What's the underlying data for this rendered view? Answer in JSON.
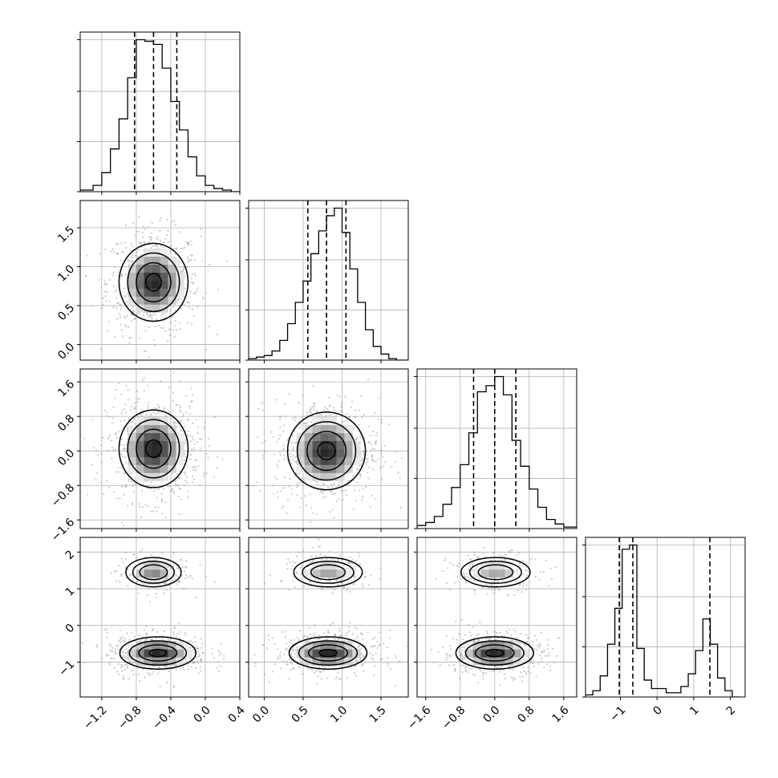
{
  "chart_data": {
    "type": "corner",
    "title": "",
    "params": [
      {
        "range": [
          -1.45,
          0.4
        ],
        "ticks": [
          -1.2,
          -0.8,
          -0.4,
          0.0,
          0.4
        ],
        "tick_labels": [
          "−1.2",
          "−0.8",
          "−0.4",
          "0.0",
          "0.4"
        ],
        "quantiles": [
          -0.82,
          -0.6,
          -0.33
        ]
      },
      {
        "range": [
          -0.2,
          1.85
        ],
        "ticks": [
          0.0,
          0.5,
          1.0,
          1.5
        ],
        "tick_labels": [
          "0.0",
          "0.5",
          "1.0",
          "1.5"
        ],
        "quantiles": [
          0.56,
          0.8,
          1.05
        ]
      },
      {
        "range": [
          -1.8,
          1.9
        ],
        "ticks": [
          -1.6,
          -0.8,
          0.0,
          0.8,
          1.6
        ],
        "tick_labels": [
          "−1.6",
          "−0.8",
          "0.0",
          "0.8",
          "1.6"
        ],
        "quantiles": [
          -0.49,
          0.0,
          0.49
        ]
      },
      {
        "range": [
          -1.95,
          2.4
        ],
        "ticks": [
          -1,
          0,
          1,
          2
        ],
        "tick_labels": [
          "−1",
          "0",
          "1",
          "2"
        ],
        "quantiles": [
          -1.03,
          -0.66,
          1.44
        ]
      }
    ],
    "histograms": [
      {
        "param": 0,
        "bin_edges": [
          -1.45,
          -1.3,
          -1.2,
          -1.1,
          -1.0,
          -0.9,
          -0.8,
          -0.7,
          -0.6,
          -0.5,
          -0.4,
          -0.3,
          -0.2,
          -0.1,
          0.0,
          0.1,
          0.2,
          0.3,
          0.4
        ],
        "counts": [
          0.01,
          0.04,
          0.12,
          0.27,
          0.46,
          0.72,
          0.96,
          0.95,
          0.93,
          0.78,
          0.57,
          0.39,
          0.22,
          0.1,
          0.04,
          0.02,
          0.01,
          0.0
        ]
      },
      {
        "param": 1,
        "bin_edges": [
          -0.2,
          -0.1,
          0.0,
          0.1,
          0.2,
          0.3,
          0.4,
          0.5,
          0.6,
          0.7,
          0.8,
          0.9,
          1.0,
          1.1,
          1.2,
          1.3,
          1.4,
          1.5,
          1.6,
          1.7,
          1.85
        ],
        "counts": [
          0.01,
          0.02,
          0.03,
          0.06,
          0.13,
          0.24,
          0.38,
          0.52,
          0.7,
          0.85,
          0.95,
          1.0,
          0.84,
          0.6,
          0.38,
          0.2,
          0.09,
          0.04,
          0.01,
          0.0
        ]
      },
      {
        "param": 2,
        "bin_edges": [
          -1.8,
          -1.6,
          -1.4,
          -1.2,
          -1.0,
          -0.8,
          -0.6,
          -0.4,
          -0.2,
          0.0,
          0.2,
          0.4,
          0.6,
          0.8,
          1.0,
          1.2,
          1.4,
          1.6,
          1.9
        ],
        "counts": [
          0.02,
          0.04,
          0.08,
          0.16,
          0.27,
          0.42,
          0.63,
          0.9,
          0.94,
          1.0,
          0.88,
          0.58,
          0.41,
          0.26,
          0.14,
          0.06,
          0.03,
          0.01
        ]
      },
      {
        "param": 3,
        "bin_edges": [
          -1.95,
          -1.75,
          -1.55,
          -1.35,
          -1.15,
          -0.95,
          -0.75,
          -0.55,
          -0.35,
          -0.15,
          0.05,
          0.25,
          0.45,
          0.65,
          0.85,
          1.05,
          1.25,
          1.45,
          1.65,
          1.85,
          2.05,
          2.25
        ],
        "counts": [
          0.01,
          0.03,
          0.1,
          0.25,
          0.42,
          0.7,
          0.72,
          0.23,
          0.08,
          0.04,
          0.04,
          0.02,
          0.02,
          0.05,
          0.11,
          0.22,
          0.37,
          0.25,
          0.09,
          0.03,
          0.0
        ]
      }
    ],
    "joint": [
      {
        "x": 0,
        "y": 1,
        "blobs": [
          {
            "cx": -0.6,
            "cy": 0.8,
            "sx": 0.2,
            "sy": 0.25,
            "w": 1.0
          }
        ]
      },
      {
        "x": 0,
        "y": 2,
        "blobs": [
          {
            "cx": -0.6,
            "cy": 0.05,
            "sx": 0.2,
            "sy": 0.45,
            "w": 1.0
          }
        ]
      },
      {
        "x": 1,
        "y": 2,
        "blobs": [
          {
            "cx": 0.8,
            "cy": 0.0,
            "sx": 0.25,
            "sy": 0.45,
            "w": 1.0
          }
        ]
      },
      {
        "x": 0,
        "y": 3,
        "blobs": [
          {
            "cx": -0.6,
            "cy": 1.45,
            "sx": 0.16,
            "sy": 0.2,
            "w": 0.3
          },
          {
            "cx": -0.55,
            "cy": -0.75,
            "sx": 0.22,
            "sy": 0.22,
            "w": 0.7
          }
        ]
      },
      {
        "x": 1,
        "y": 3,
        "blobs": [
          {
            "cx": 0.82,
            "cy": 1.45,
            "sx": 0.22,
            "sy": 0.2,
            "w": 0.3
          },
          {
            "cx": 0.82,
            "cy": -0.75,
            "sx": 0.25,
            "sy": 0.22,
            "w": 0.7
          }
        ]
      },
      {
        "x": 2,
        "y": 3,
        "blobs": [
          {
            "cx": 0.02,
            "cy": 1.45,
            "sx": 0.4,
            "sy": 0.2,
            "w": 0.3
          },
          {
            "cx": 0.0,
            "cy": -0.75,
            "sx": 0.45,
            "sy": 0.22,
            "w": 0.7
          }
        ]
      }
    ],
    "grid": true,
    "colors": {
      "line": "#000000",
      "grid": "#b0b0b0",
      "points": "#8c8c8c",
      "density_dark": "#000000"
    }
  }
}
